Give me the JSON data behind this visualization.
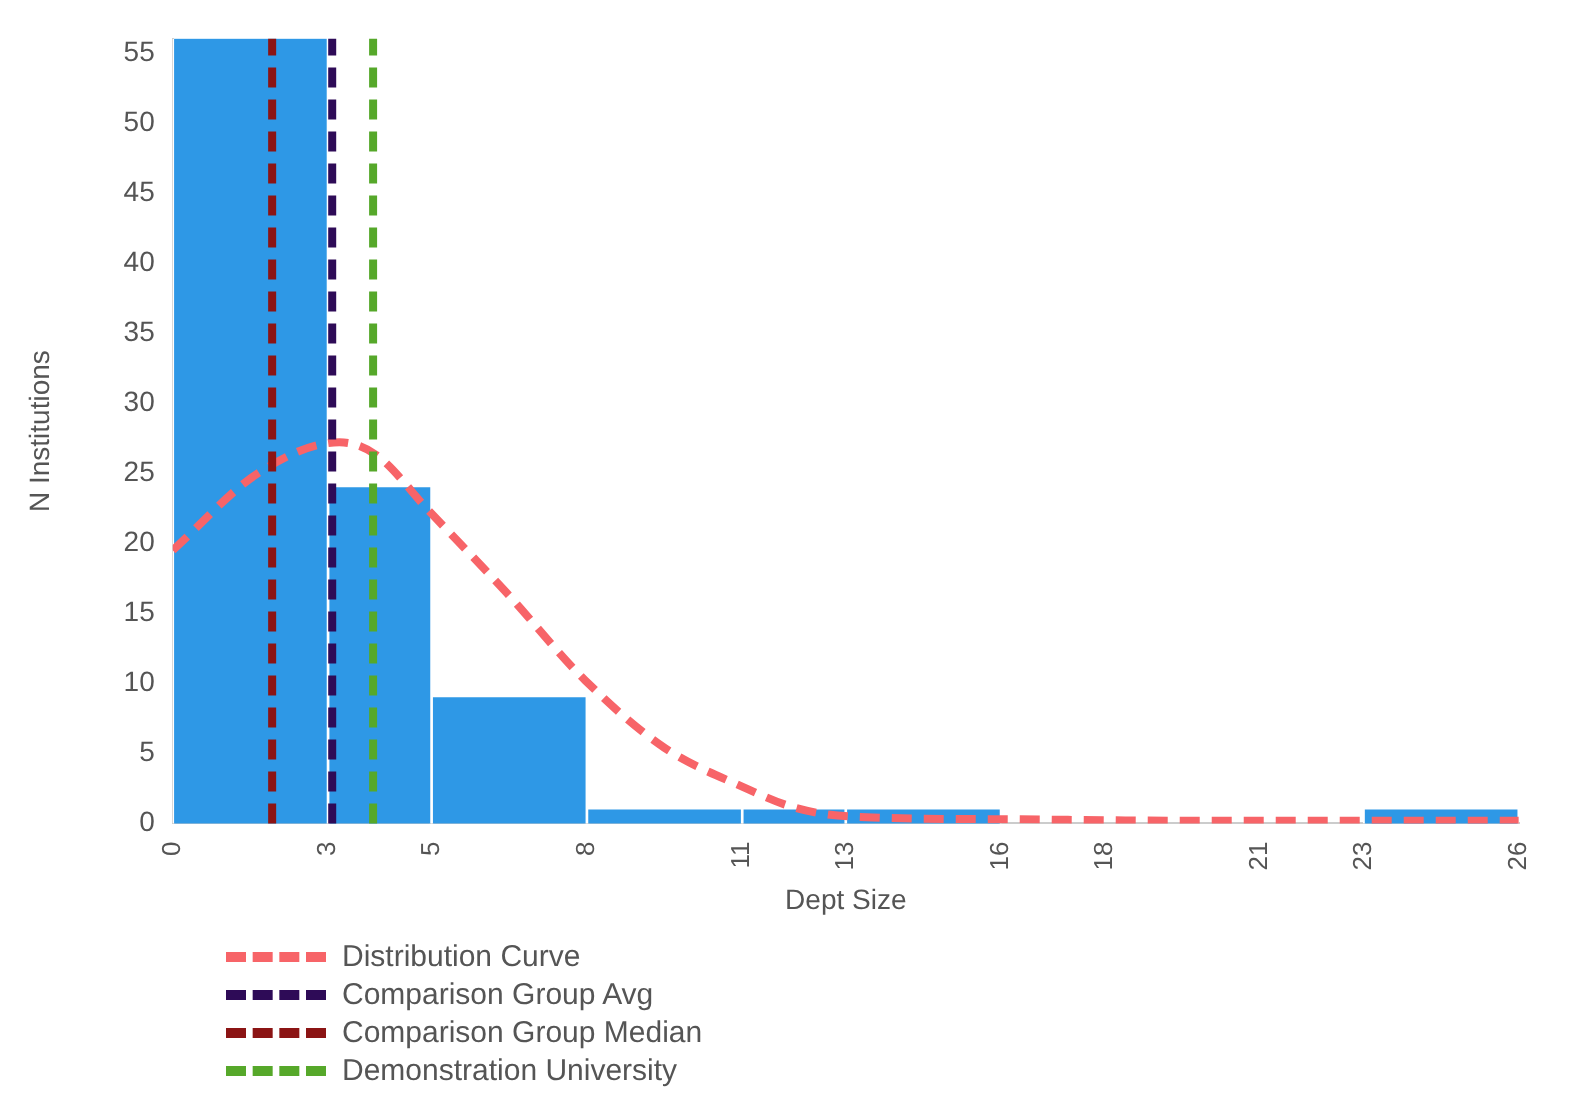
{
  "chart_data": {
    "type": "histogram",
    "xlabel": "Dept Size",
    "ylabel": "N Institutions",
    "bins": [
      0,
      3,
      5,
      8,
      11,
      13,
      16,
      18,
      21,
      23,
      26
    ],
    "values": [
      56,
      24,
      9,
      1,
      1,
      1,
      0,
      0,
      0,
      1
    ],
    "color": "#2e98e6",
    "series": [
      {
        "name": "Distribution Curve",
        "type": "line",
        "color": "#f76468",
        "line_style": "dashed",
        "x": [
          0,
          1.65,
          3.22,
          3.93,
          4.95,
          6.44,
          7.97,
          9.5,
          11.02,
          12.04,
          13.08,
          16.15,
          19.38,
          26
        ],
        "values": [
          19.5,
          25,
          27.2,
          26.3,
          22.3,
          16.5,
          10.2,
          5.4,
          2.6,
          1.1,
          0.5,
          0.3,
          0.2,
          0.2
        ]
      }
    ],
    "ref_lines": [
      {
        "axis": "x",
        "value": 3.08,
        "label": "Comparison Group Avg",
        "color": "#2e0b57",
        "line_style": "dashed"
      },
      {
        "axis": "x",
        "value": 1.92,
        "label": "Comparison Group Median",
        "color": "#8b1414",
        "line_style": "dashed"
      },
      {
        "axis": "x",
        "value": 3.87,
        "label": "Demonstration University",
        "color": "#56a82a",
        "line_style": "dashed"
      }
    ],
    "xlim": [
      0,
      26
    ],
    "xticks": [
      0,
      3,
      5,
      8,
      11,
      13,
      16,
      18,
      21,
      23,
      26
    ],
    "ylim": [
      0,
      56
    ],
    "yticks": [
      0,
      5,
      10,
      15,
      20,
      25,
      30,
      35,
      40,
      45,
      50,
      55
    ],
    "grid": false,
    "legend": "bottom left"
  }
}
